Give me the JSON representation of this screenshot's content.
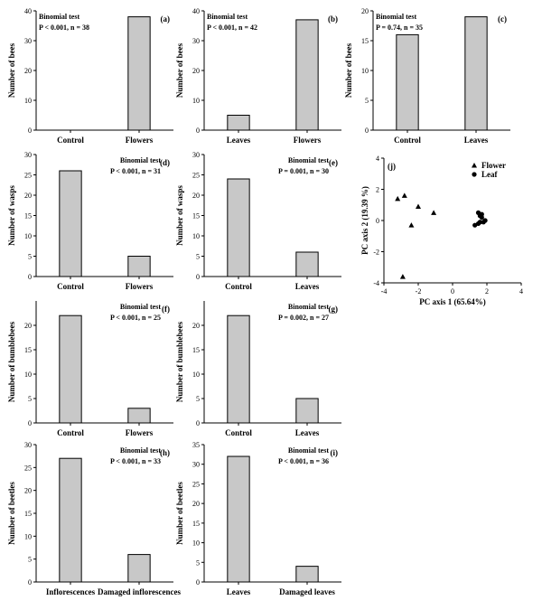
{
  "chart_data": [
    {
      "id": "a",
      "type": "bar",
      "panel_label": "(a)",
      "test": "Binomial test",
      "stat": "P < 0.001, n = 38",
      "stat_side": "left",
      "ylabel": "Number of bees",
      "xlabel": "",
      "categories": [
        "Control",
        "Flowers"
      ],
      "values": [
        0,
        38
      ],
      "ylim": [
        0,
        40
      ],
      "yticks": [
        0,
        10,
        20,
        30,
        40
      ]
    },
    {
      "id": "b",
      "type": "bar",
      "panel_label": "(b)",
      "test": "Binomial test",
      "stat": "P < 0.001, n = 42",
      "stat_side": "left",
      "ylabel": "Number of bees",
      "xlabel": "",
      "categories": [
        "Leaves",
        "Flowers"
      ],
      "values": [
        5,
        37
      ],
      "ylim": [
        0,
        40
      ],
      "yticks": [
        0,
        10,
        20,
        30,
        40
      ]
    },
    {
      "id": "c",
      "type": "bar",
      "panel_label": "(c)",
      "test": "Binomial test",
      "stat": "P = 0.74, n = 35",
      "stat_side": "left",
      "ylabel": "Number of bees",
      "xlabel": "",
      "categories": [
        "Control",
        "Leaves"
      ],
      "values": [
        16,
        19
      ],
      "ylim": [
        0,
        20
      ],
      "yticks": [
        0,
        5,
        10,
        15,
        20
      ]
    },
    {
      "id": "d",
      "type": "bar",
      "panel_label": "(d)",
      "test": "Binomial test",
      "stat": "P < 0.001, n = 31",
      "stat_side": "right",
      "ylabel": "Number of wasps",
      "xlabel": "",
      "categories": [
        "Control",
        "Flowers"
      ],
      "values": [
        26,
        5
      ],
      "ylim": [
        0,
        30
      ],
      "yticks": [
        0,
        5,
        10,
        15,
        20,
        25,
        30
      ]
    },
    {
      "id": "e",
      "type": "bar",
      "panel_label": "(e)",
      "test": "Binomial test",
      "stat": "P = 0.001, n = 30",
      "stat_side": "right",
      "ylabel": "Number of wasps",
      "xlabel": "",
      "categories": [
        "Control",
        "Leaves"
      ],
      "values": [
        24,
        6
      ],
      "ylim": [
        0,
        30
      ],
      "yticks": [
        0,
        5,
        10,
        15,
        20,
        25,
        30
      ]
    },
    {
      "id": "j",
      "type": "scatter",
      "panel_label": "(j)",
      "xlabel": "PC axis 1 (65.64%)",
      "ylabel": "PC axis 2 (19.39 %)",
      "xlim": [
        -4,
        4
      ],
      "ylim": [
        -4,
        4
      ],
      "xticks": [
        -4,
        -2,
        0,
        2,
        4
      ],
      "yticks": [
        -4,
        -2,
        0,
        2,
        4
      ],
      "legend_position": "top-right",
      "series": [
        {
          "name": "Flower",
          "marker": "triangle",
          "points": [
            [
              -3.2,
              1.4
            ],
            [
              -2.8,
              1.6
            ],
            [
              -2.4,
              -0.3
            ],
            [
              -2.0,
              0.9
            ],
            [
              -1.1,
              0.5
            ],
            [
              -2.9,
              -3.6
            ]
          ]
        },
        {
          "name": "Leaf",
          "marker": "circle",
          "points": [
            [
              1.5,
              0.5
            ],
            [
              1.6,
              0.3
            ],
            [
              1.7,
              0.4
            ],
            [
              1.9,
              0.0
            ],
            [
              1.6,
              -0.1
            ],
            [
              1.5,
              -0.2
            ],
            [
              1.3,
              -0.3
            ],
            [
              1.8,
              -0.1
            ],
            [
              1.7,
              0.2
            ]
          ]
        }
      ]
    },
    {
      "id": "f",
      "type": "bar",
      "panel_label": "(f)",
      "test": "Binomial test",
      "stat": "P < 0.001, n = 25",
      "stat_side": "right",
      "ylabel": "Number of bumblebees",
      "xlabel": "",
      "categories": [
        "Control",
        "Flowers"
      ],
      "values": [
        22,
        3
      ],
      "ylim": [
        0,
        25
      ],
      "yticks": [
        0,
        5,
        10,
        15,
        20
      ]
    },
    {
      "id": "g",
      "type": "bar",
      "panel_label": "(g)",
      "test": "Binomial test",
      "stat": "P = 0.002, n = 27",
      "stat_side": "right",
      "ylabel": "Number of bumblebees",
      "xlabel": "",
      "categories": [
        "Control",
        "Leaves"
      ],
      "values": [
        22,
        5
      ],
      "ylim": [
        0,
        25
      ],
      "yticks": [
        0,
        5,
        10,
        15,
        20
      ]
    },
    {
      "id": "h",
      "type": "bar",
      "panel_label": "(h)",
      "test": "Binomial test",
      "stat": "P < 0.001, n = 33",
      "stat_side": "right",
      "ylabel": "Number of beetles",
      "xlabel": "",
      "categories": [
        "Inflorescences",
        "Damaged inflorescences"
      ],
      "values": [
        27,
        6
      ],
      "ylim": [
        0,
        30
      ],
      "yticks": [
        0,
        5,
        10,
        15,
        20,
        25,
        30
      ]
    },
    {
      "id": "i",
      "type": "bar",
      "panel_label": "(i)",
      "test": "Binomial test",
      "stat": "P < 0.001, n = 36",
      "stat_side": "right",
      "ylabel": "Number of beetles",
      "xlabel": "",
      "categories": [
        "Leaves",
        "Damaged leaves"
      ],
      "values": [
        32,
        4
      ],
      "ylim": [
        0,
        35
      ],
      "yticks": [
        0,
        5,
        10,
        15,
        20,
        25,
        30,
        35
      ]
    }
  ]
}
